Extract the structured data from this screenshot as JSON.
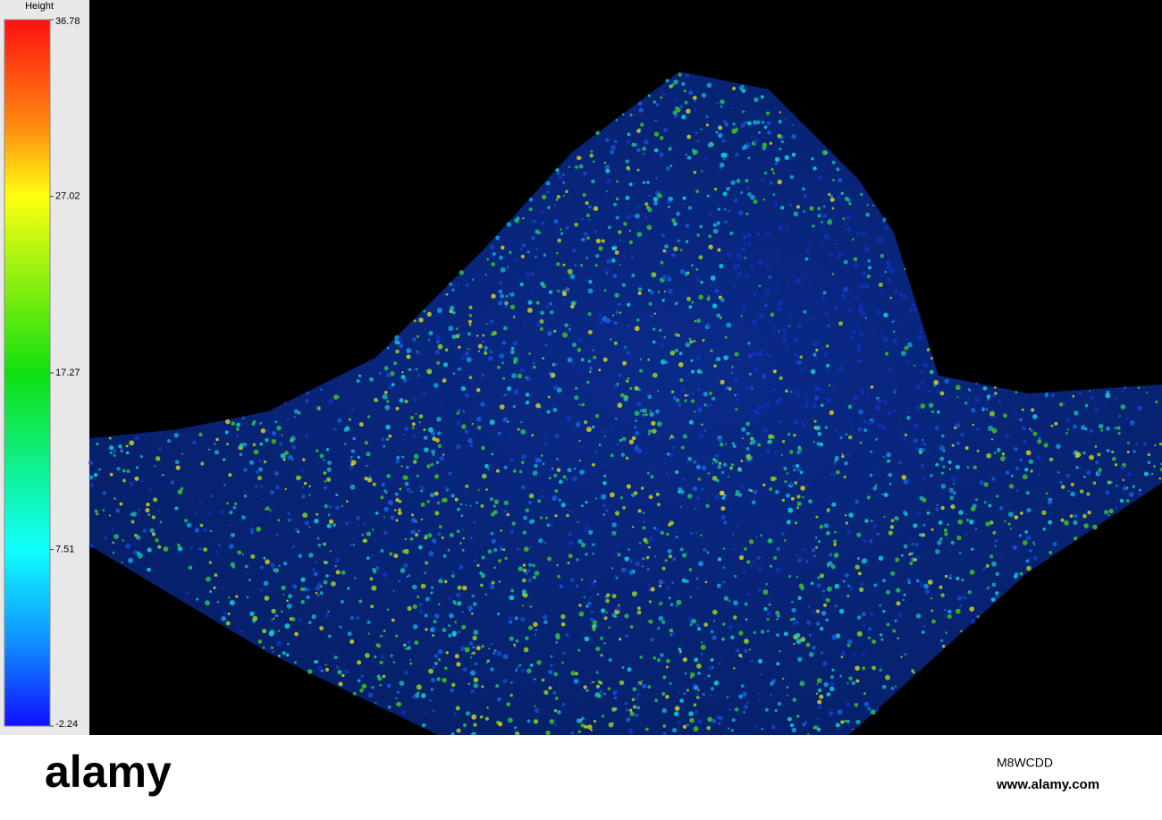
{
  "legend": {
    "title": "Height",
    "ticks": [
      36.78,
      27.02,
      17.27,
      7.51,
      -2.24
    ]
  },
  "footer": {
    "brand": "alamy",
    "image_id": "M8WCDD",
    "site": "www.alamy.com"
  }
}
